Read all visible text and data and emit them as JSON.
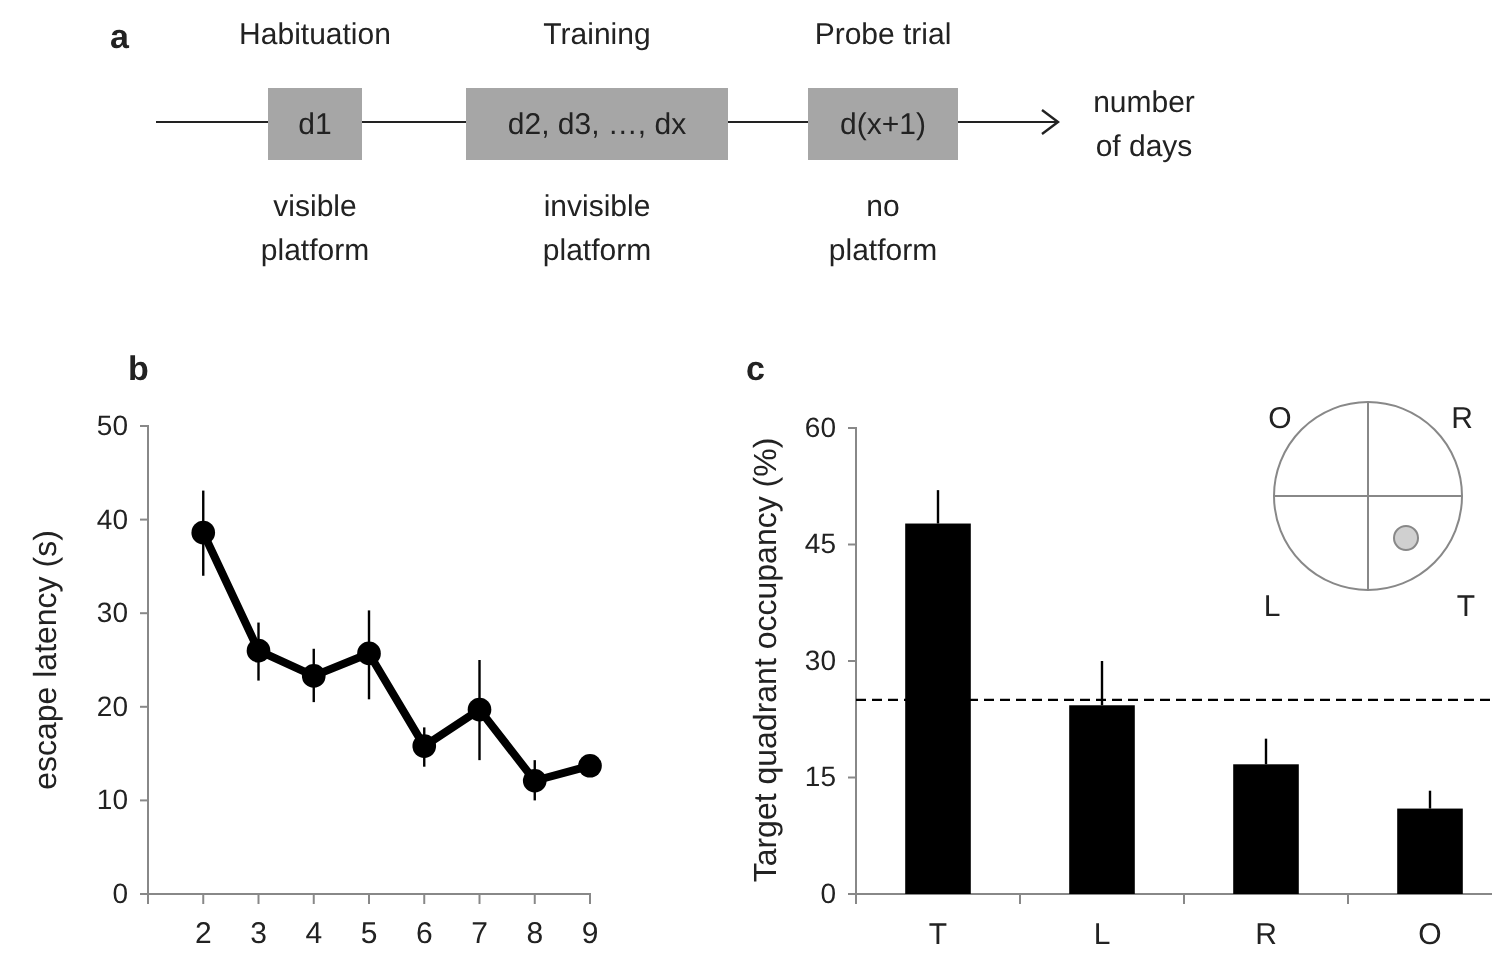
{
  "chart_data": [
    {
      "type": "other",
      "title": "a",
      "annotations": [
        "Habituation",
        "Training",
        "Probe trial",
        "d1",
        "d2, d3, …, dx",
        "d(x+1)",
        "visible platform",
        "invisible platform",
        "no platform",
        "number of days"
      ]
    },
    {
      "type": "line",
      "title": "b",
      "ylabel": "escape latency (s)",
      "x": [
        2,
        3,
        4,
        5,
        6,
        7,
        8,
        9
      ],
      "xlim": [
        1,
        9
      ],
      "xticks": [
        2,
        3,
        4,
        5,
        6,
        7,
        8,
        9
      ],
      "ylim": [
        0,
        50
      ],
      "yticks": [
        0,
        10,
        20,
        30,
        40,
        50
      ],
      "marker": "circle",
      "line_style": "solid",
      "series": [
        {
          "color": "#000000",
          "values": [
            38.6,
            26,
            23.3,
            25.7,
            15.8,
            19.7,
            12.1,
            13.7
          ],
          "errors": [
            [
              34,
              43.1
            ],
            [
              22.8,
              29
            ],
            [
              20.5,
              26.2
            ],
            [
              20.8,
              30.3
            ],
            [
              13.6,
              17.8
            ],
            [
              14.3,
              25
            ],
            [
              10,
              14.3
            ],
            [
              12.5,
              14.7
            ]
          ]
        }
      ]
    },
    {
      "type": "bar",
      "title": "c",
      "ylabel": "Target quadrant occupancy (%)",
      "categories": [
        "T",
        "L",
        "R",
        "O"
      ],
      "ylim": [
        0,
        60
      ],
      "yticks": [
        0,
        15,
        30,
        45,
        60
      ],
      "series": [
        {
          "color": "#000000",
          "values": [
            47.7,
            24.3,
            16.7,
            11
          ],
          "errors": [
            [
              47.7,
              52
            ],
            [
              24.3,
              30
            ],
            [
              16.7,
              20
            ],
            [
              11,
              13.3
            ]
          ]
        }
      ],
      "ref_lines": [
        {
          "axis": "y",
          "value": 25,
          "line_style": "dashed",
          "color": "#000000"
        }
      ],
      "annotations": [
        "O",
        "R",
        "L",
        "T"
      ]
    }
  ]
}
